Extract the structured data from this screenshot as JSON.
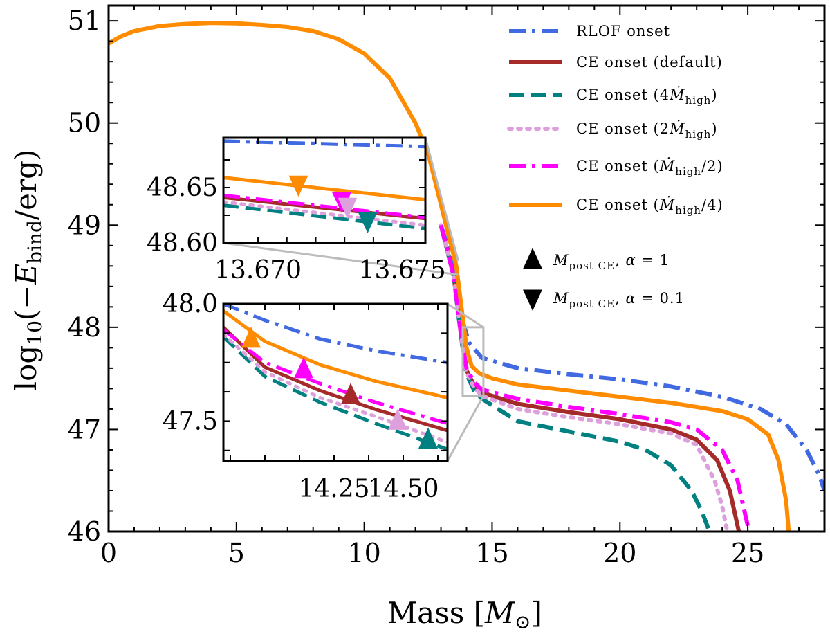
{
  "chart_data": {
    "type": "line",
    "xlabel": "Mass [M_⊙]",
    "ylabel": "log10(−E_bind/erg)",
    "xlim": [
      0,
      28
    ],
    "ylim": [
      46,
      51.15
    ],
    "xticks": [
      "0",
      "5",
      "10",
      "15",
      "20",
      "25"
    ],
    "yticks": [
      "46",
      "47",
      "48",
      "49",
      "50",
      "51"
    ],
    "series": [
      {
        "name": "RLOF onset",
        "color": "#4169e1",
        "style": "dashdot",
        "end_mass": 28.0,
        "points": [
          [
            13.0,
            49.0
          ],
          [
            13.5,
            48.6
          ],
          [
            13.8,
            48.1
          ],
          [
            14.1,
            47.85
          ],
          [
            14.6,
            47.7
          ],
          [
            16,
            47.6
          ],
          [
            18,
            47.54
          ],
          [
            20,
            47.49
          ],
          [
            22,
            47.42
          ],
          [
            24,
            47.32
          ],
          [
            25.5,
            47.2
          ],
          [
            26.5,
            47.05
          ],
          [
            27.3,
            46.8
          ],
          [
            27.8,
            46.55
          ],
          [
            28.0,
            46.4
          ]
        ]
      },
      {
        "name": "CE onset (default)",
        "color": "#a52a2a",
        "style": "solid",
        "end_mass": 24.65,
        "points": [
          [
            13.0,
            49.0
          ],
          [
            13.5,
            48.5
          ],
          [
            13.8,
            47.9
          ],
          [
            14.0,
            47.58
          ],
          [
            14.3,
            47.43
          ],
          [
            14.6,
            47.36
          ],
          [
            16,
            47.25
          ],
          [
            18,
            47.17
          ],
          [
            20,
            47.1
          ],
          [
            22,
            47.0
          ],
          [
            23,
            46.9
          ],
          [
            23.8,
            46.7
          ],
          [
            24.3,
            46.4
          ],
          [
            24.65,
            46.0
          ]
        ]
      },
      {
        "name": "CE onset (4Ṁ_high)",
        "color": "#008080",
        "style": "dashed",
        "end_mass": 23.5,
        "points": [
          [
            13.0,
            49.0
          ],
          [
            13.5,
            48.5
          ],
          [
            13.8,
            47.88
          ],
          [
            14.0,
            47.54
          ],
          [
            14.3,
            47.38
          ],
          [
            14.6,
            47.3
          ],
          [
            16,
            47.08
          ],
          [
            18,
            46.98
          ],
          [
            20,
            46.88
          ],
          [
            21,
            46.8
          ],
          [
            22,
            46.65
          ],
          [
            22.8,
            46.4
          ],
          [
            23.2,
            46.2
          ],
          [
            23.5,
            46.0
          ]
        ]
      },
      {
        "name": "CE onset (2Ṁ_high)",
        "color": "#dda0dd",
        "style": "dotted",
        "end_mass": 24.2,
        "points": [
          [
            13.0,
            49.0
          ],
          [
            13.5,
            48.5
          ],
          [
            13.8,
            47.89
          ],
          [
            14.0,
            47.56
          ],
          [
            14.3,
            47.41
          ],
          [
            14.6,
            47.33
          ],
          [
            16,
            47.2
          ],
          [
            18,
            47.12
          ],
          [
            20,
            47.05
          ],
          [
            22,
            46.96
          ],
          [
            23,
            46.85
          ],
          [
            23.7,
            46.5
          ],
          [
            24.0,
            46.25
          ],
          [
            24.2,
            46.0
          ]
        ]
      },
      {
        "name": "CE onset (Ṁ_high/2)",
        "color": "#ff00ff",
        "style": "dashdot",
        "end_mass": 25.05,
        "points": [
          [
            13.0,
            49.0
          ],
          [
            13.5,
            48.5
          ],
          [
            13.8,
            47.9
          ],
          [
            14.0,
            47.6
          ],
          [
            14.3,
            47.46
          ],
          [
            14.6,
            47.39
          ],
          [
            16,
            47.3
          ],
          [
            18,
            47.22
          ],
          [
            20,
            47.15
          ],
          [
            22,
            47.07
          ],
          [
            23,
            47.0
          ],
          [
            24,
            46.8
          ],
          [
            24.6,
            46.5
          ],
          [
            25.05,
            46.0
          ]
        ]
      },
      {
        "name": "CE onset (Ṁ_high/4)",
        "color": "#ff8c00",
        "style": "solid",
        "end_mass": 26.6,
        "points": [
          [
            0,
            50.78
          ],
          [
            0.5,
            50.85
          ],
          [
            1,
            50.9
          ],
          [
            2,
            50.95
          ],
          [
            3,
            50.97
          ],
          [
            4,
            50.98
          ],
          [
            5,
            50.975
          ],
          [
            6,
            50.96
          ],
          [
            7,
            50.94
          ],
          [
            8,
            50.9
          ],
          [
            9,
            50.82
          ],
          [
            10,
            50.68
          ],
          [
            11,
            50.44
          ],
          [
            12,
            50.0
          ],
          [
            12.5,
            49.7
          ],
          [
            13.0,
            49.2
          ],
          [
            13.3,
            48.9
          ],
          [
            13.6,
            48.6
          ],
          [
            13.8,
            48.2
          ],
          [
            14.0,
            47.8
          ],
          [
            14.2,
            47.62
          ],
          [
            14.5,
            47.55
          ],
          [
            15,
            47.5
          ],
          [
            16,
            47.44
          ],
          [
            18,
            47.38
          ],
          [
            20,
            47.32
          ],
          [
            22,
            47.26
          ],
          [
            24,
            47.18
          ],
          [
            25,
            47.1
          ],
          [
            25.8,
            46.95
          ],
          [
            26.2,
            46.7
          ],
          [
            26.5,
            46.3
          ],
          [
            26.6,
            46.0
          ]
        ]
      }
    ],
    "markers": [
      {
        "series": 5,
        "type": "up",
        "x": 13.95,
        "y": 47.85,
        "panel": "inset2"
      },
      {
        "series": 4,
        "type": "up",
        "x": 14.14,
        "y": 47.72,
        "panel": "inset2"
      },
      {
        "series": 1,
        "type": "up",
        "x": 14.31,
        "y": 47.61,
        "panel": "inset2"
      },
      {
        "series": 3,
        "type": "up",
        "x": 14.48,
        "y": 47.5,
        "panel": "inset2"
      },
      {
        "series": 2,
        "type": "up",
        "x": 14.59,
        "y": 47.42,
        "panel": "inset2"
      },
      {
        "series": 5,
        "type": "down",
        "x": 13.6714,
        "y": 48.653,
        "panel": "inset1"
      },
      {
        "series": 4,
        "type": "down",
        "x": 13.6729,
        "y": 48.638,
        "panel": "inset1"
      },
      {
        "series": 3,
        "type": "down",
        "x": 13.6731,
        "y": 48.633,
        "panel": "inset1"
      },
      {
        "series": 2,
        "type": "down",
        "x": 13.6738,
        "y": 48.62,
        "panel": "inset1"
      }
    ],
    "inset1": {
      "xlim": [
        13.6688,
        13.6758
      ],
      "ylim": [
        48.6,
        48.695
      ],
      "xticks": [
        "13.670",
        "13.675"
      ],
      "yticks": [
        "48.60",
        "48.65"
      ],
      "source_x": [
        13.6,
        13.75
      ],
      "source_y": [
        48.6,
        48.695
      ]
    },
    "inset2": {
      "xlim": [
        13.85,
        14.66
      ],
      "ylim": [
        47.33,
        48.0
      ],
      "xticks": [
        "14.25",
        "14.50"
      ],
      "yticks": [
        "47.5",
        "48.0"
      ],
      "source_x": [
        13.85,
        14.66
      ],
      "source_y": [
        47.33,
        48.0
      ]
    },
    "legend_position": "top-right",
    "legend_markers": [
      {
        "type": "up",
        "label": "M_post CE, α = 1"
      },
      {
        "type": "down",
        "label": "M_post CE, α = 0.1"
      }
    ]
  }
}
